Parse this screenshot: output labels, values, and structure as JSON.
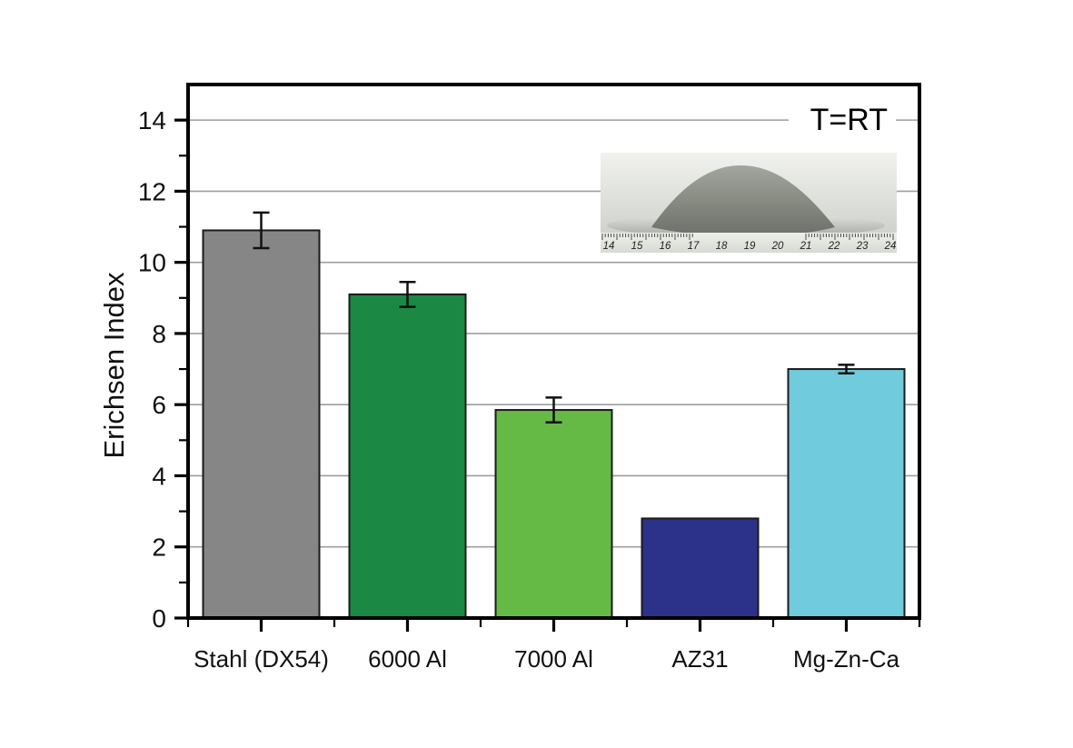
{
  "page": {
    "background": "#ffffff"
  },
  "chart_data": {
    "type": "bar",
    "title": "",
    "ylabel": "Erichsen Index",
    "xlabel": "",
    "annotation": "T=RT",
    "categories": [
      "Stahl (DX54)",
      "6000 Al",
      "7000 Al",
      "AZ31",
      "Mg-Zn-Ca"
    ],
    "values": [
      10.9,
      9.1,
      5.85,
      2.8,
      7.0
    ],
    "errors": [
      0.5,
      0.35,
      0.35,
      0,
      0.12
    ],
    "bar_colors": [
      "#868686",
      "#1b8843",
      "#64ba45",
      "#2c3189",
      "#70cbdc"
    ],
    "bar_edge_color": "#1a1a1a",
    "error_bar_color": "#111111",
    "grid_color": "#9e9e9e",
    "ylim": [
      0,
      15
    ],
    "yticks": [
      0,
      2,
      4,
      6,
      8,
      10,
      12,
      14
    ],
    "minor_yticks": [
      1,
      3,
      5,
      7,
      9,
      11,
      13
    ],
    "grid": "horizontal-major",
    "legend": "none",
    "inset": {
      "description": "photo of Erichsen cupping test dome specimen on a ruler",
      "ruler_numbers": [
        "14",
        "15",
        "16",
        "17",
        "18",
        "19",
        "20",
        "21",
        "22",
        "23",
        "24"
      ]
    }
  }
}
